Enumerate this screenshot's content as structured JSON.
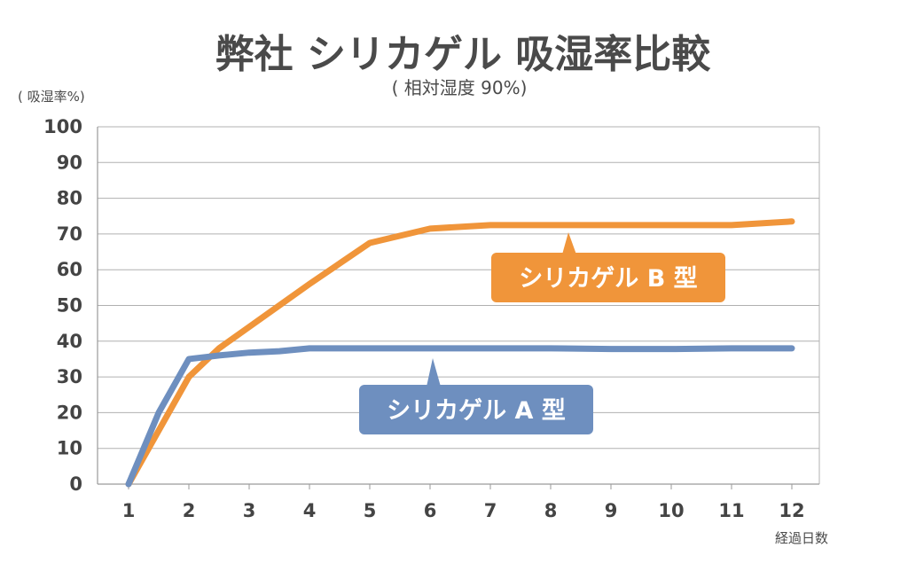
{
  "chart_data": {
    "type": "line",
    "title": "弊社 シリカゲル 吸湿率比較",
    "subtitle": "( 相対湿度 90%)",
    "ylabel": "( 吸湿率%)",
    "xlabel": "経過日数",
    "ylim": [
      0,
      100
    ],
    "yticks": [
      0,
      10,
      20,
      30,
      40,
      50,
      60,
      70,
      80,
      90,
      100
    ],
    "xticks": [
      1,
      2,
      3,
      4,
      5,
      6,
      7,
      8,
      9,
      10,
      11,
      12
    ],
    "grid": true,
    "series": [
      {
        "name": "シリカゲル B 型",
        "color": "#f0953a",
        "x": [
          1,
          1.5,
          2,
          2.5,
          3,
          3.5,
          4,
          5,
          6,
          7,
          8,
          9,
          10,
          11,
          12
        ],
        "y": [
          0,
          15,
          30,
          38,
          44,
          50,
          56,
          67.5,
          71.5,
          72.5,
          72.5,
          72.5,
          72.5,
          72.5,
          73.5
        ]
      },
      {
        "name": "シリカゲル A 型",
        "color": "#6e8fbf",
        "x": [
          1,
          1.5,
          2,
          2.5,
          3,
          3.5,
          4,
          5,
          6,
          7,
          8,
          9,
          10,
          11,
          12
        ],
        "y": [
          0,
          20,
          35,
          36,
          36.8,
          37.2,
          38,
          38,
          38,
          38,
          38,
          37.8,
          37.8,
          38,
          38
        ]
      }
    ]
  }
}
